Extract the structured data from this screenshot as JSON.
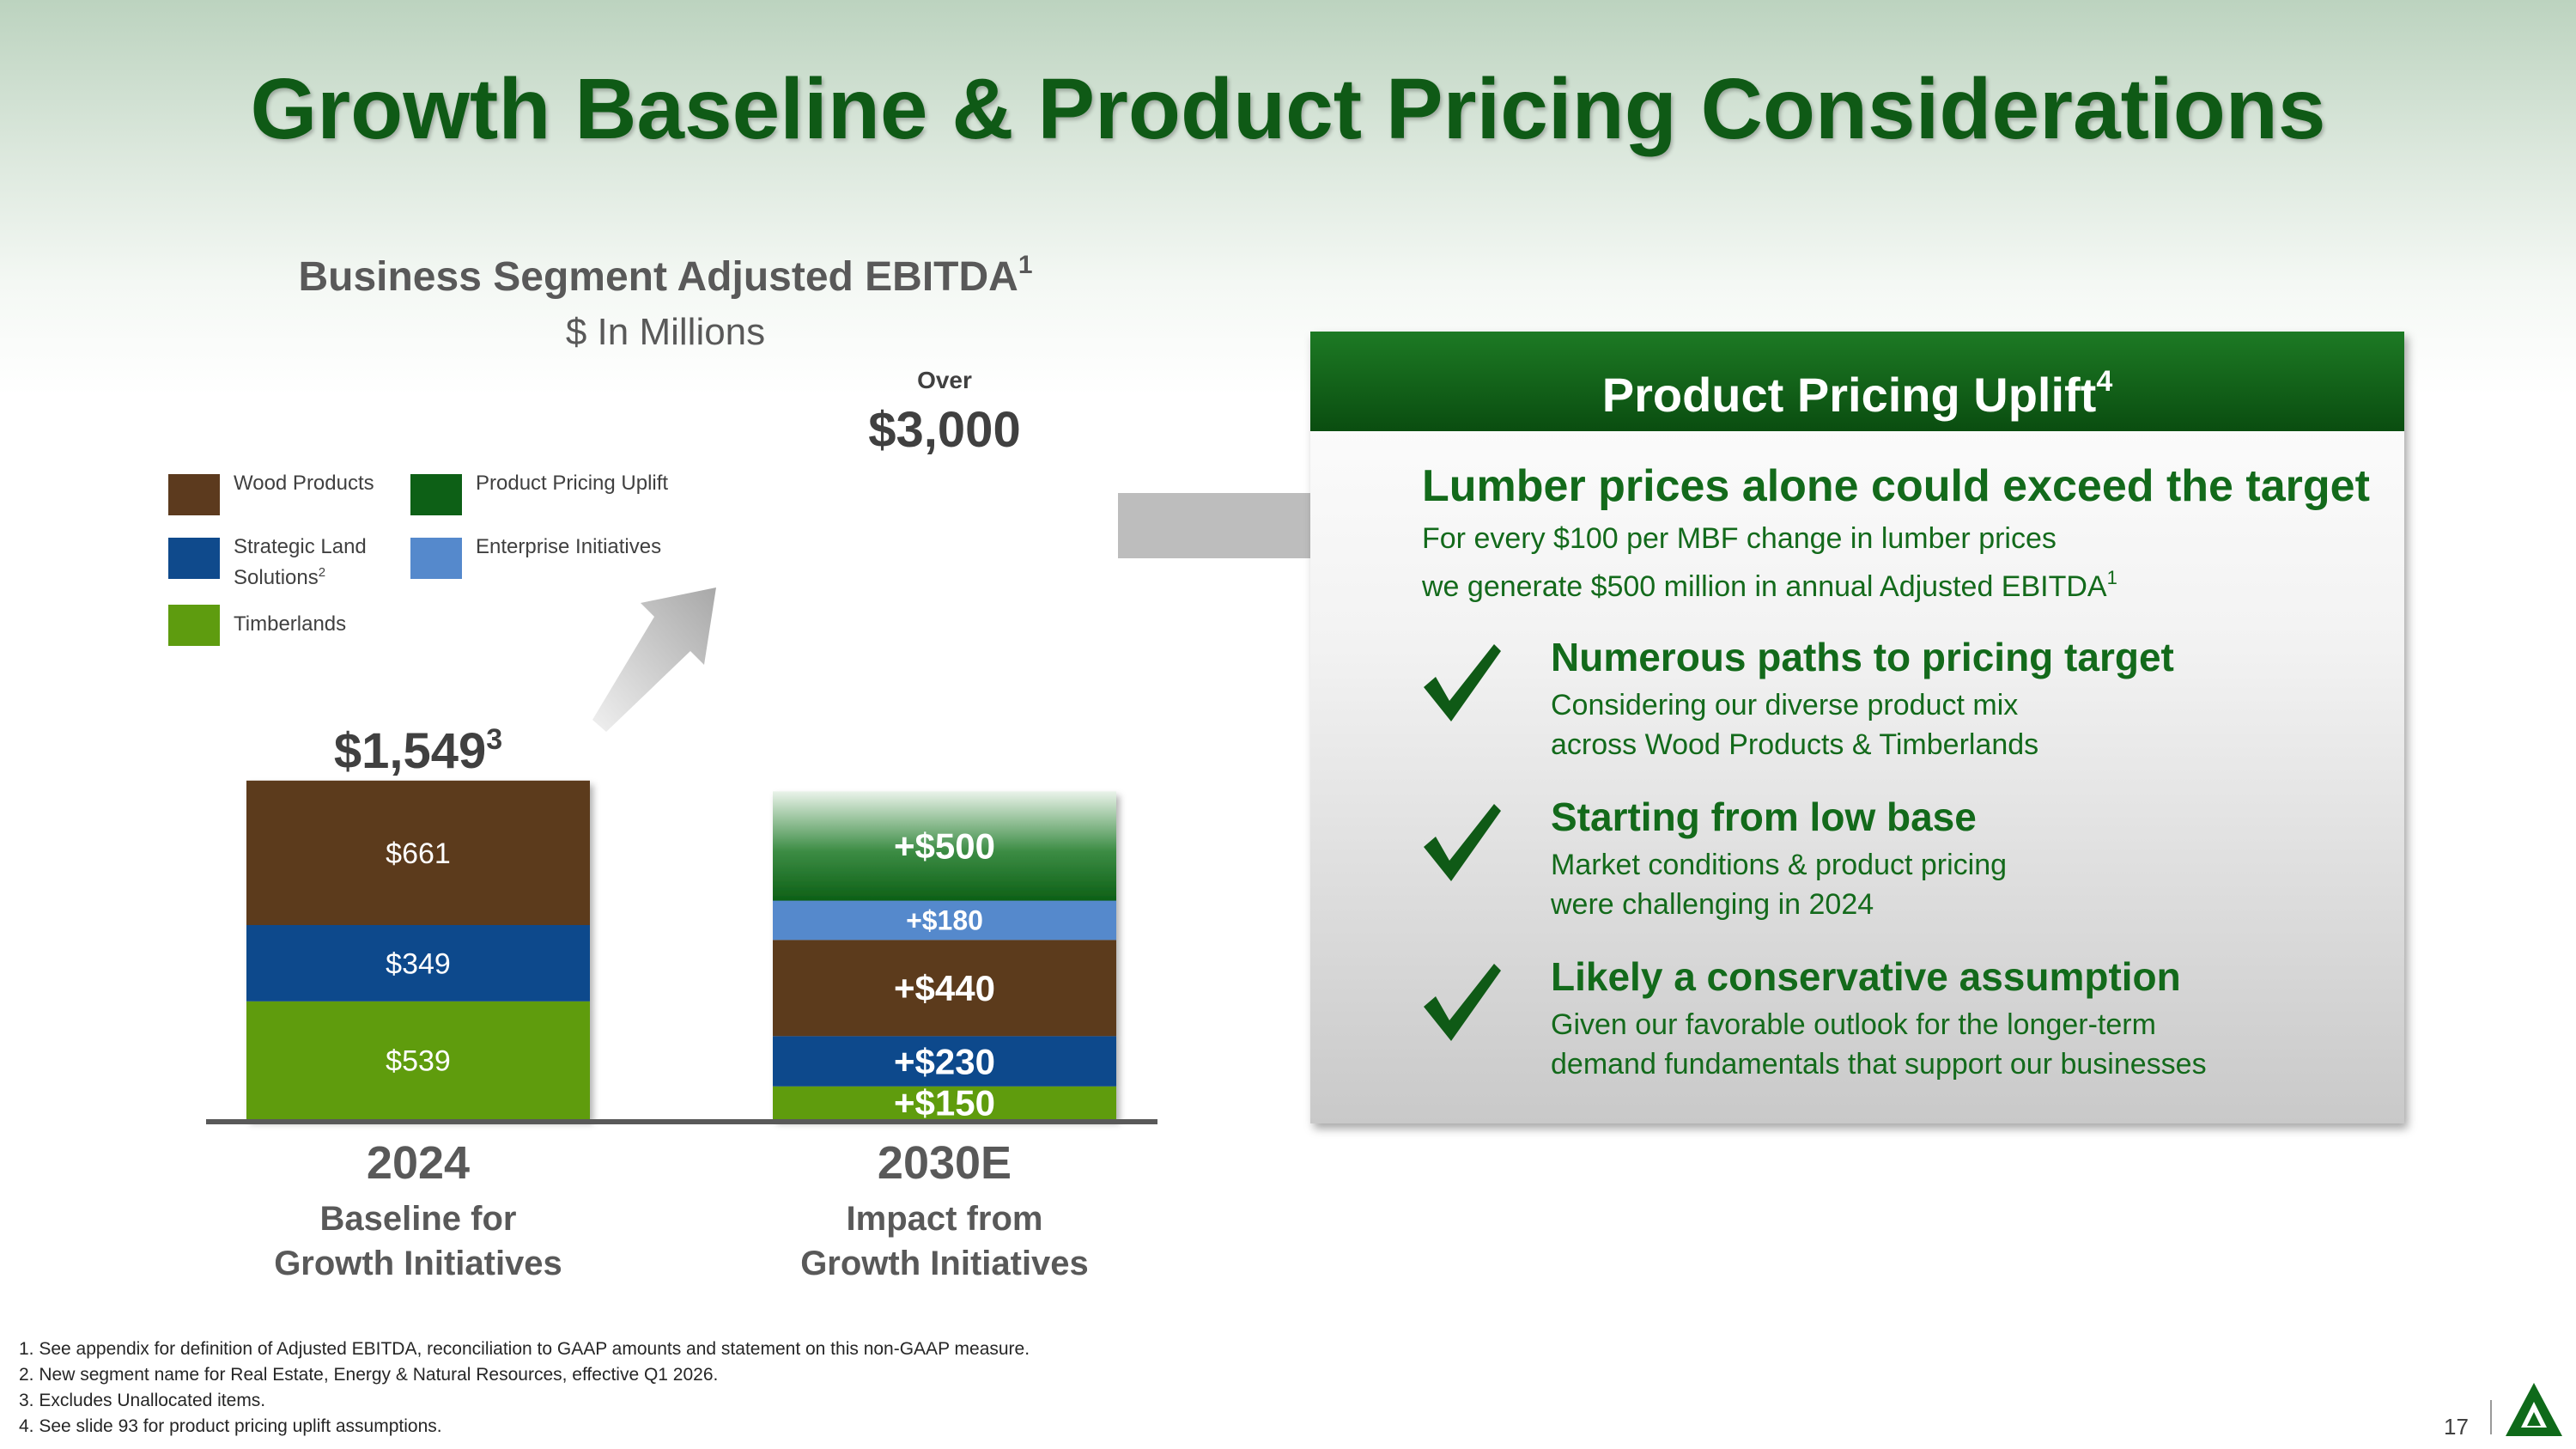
{
  "title": "Growth Baseline & Product Pricing Considerations",
  "chart_header": {
    "title": "Business Segment Adjusted EBITDA",
    "title_sup": "1",
    "subtitle": "$ In Millions"
  },
  "legend": [
    {
      "label": "Wood Products",
      "color": "#5c3a1e"
    },
    {
      "label": "Product Pricing Uplift",
      "color": "#0d6016"
    },
    {
      "label": "Strategic Land Solutions",
      "sup": "2",
      "color": "#0f4a8c"
    },
    {
      "label": "Enterprise Initiatives",
      "color": "#5589cc"
    },
    {
      "label": "Timberlands",
      "color": "#5e9c0f"
    }
  ],
  "chart_data": {
    "type": "bar",
    "subtype": "stacked",
    "unit": "$ In Millions",
    "categories": [
      "2024",
      "2030E"
    ],
    "category_subtitles": [
      [
        "Baseline for",
        "Growth Initiatives"
      ],
      [
        "Impact from",
        "Growth Initiatives"
      ]
    ],
    "totals": [
      {
        "label": "$1,549",
        "sup": "3",
        "prefix": ""
      },
      {
        "label": "$3,000",
        "sup": "",
        "prefix": "Over"
      }
    ],
    "series": [
      {
        "name": "Timberlands",
        "color": "#5e9c0f",
        "values": [
          539,
          150
        ],
        "labels": [
          "$539",
          "+$150"
        ]
      },
      {
        "name": "Strategic Land Solutions",
        "color": "#0f4a8c",
        "values": [
          349,
          230
        ],
        "labels": [
          "$349",
          "+$230"
        ]
      },
      {
        "name": "Wood Products",
        "color": "#5c3a1e",
        "values": [
          661,
          440
        ],
        "labels": [
          "$661",
          "+$440"
        ]
      },
      {
        "name": "Enterprise Initiatives",
        "color": "#5589cc",
        "values": [
          0,
          180
        ],
        "labels": [
          "",
          "+$180"
        ]
      },
      {
        "name": "Product Pricing Uplift",
        "color": "#0d6016",
        "values": [
          0,
          500
        ],
        "labels": [
          "",
          "+$500"
        ]
      }
    ]
  },
  "panel": {
    "header": "Product Pricing Uplift",
    "header_sup": "4",
    "headline": "Lumber prices alone could exceed the target",
    "body_line1": "For every $100 per MBF change in lumber prices",
    "body_line2": "we generate $500 million in annual Adjusted EBITDA",
    "body_sup": "1",
    "points": [
      {
        "title": "Numerous paths to pricing target",
        "line1": "Considering our diverse product mix",
        "line2": "across Wood Products & Timberlands"
      },
      {
        "title": "Starting from low base",
        "line1": "Market conditions & product pricing",
        "line2": "were challenging in 2024"
      },
      {
        "title": "Likely a conservative assumption",
        "line1": "Given our favorable outlook for the longer-term",
        "line2": "demand fundamentals that support our businesses"
      }
    ]
  },
  "footnotes": [
    "1. See appendix for definition of Adjusted EBITDA, reconciliation to GAAP amounts and statement on this non-GAAP measure.",
    "2. New segment name for Real Estate, Energy & Natural Resources, effective Q1 2026.",
    "3. Excludes Unallocated items.",
    "4. See slide 93 for product pricing uplift assumptions."
  ],
  "page_number": "17",
  "colors": {
    "title_green": "#0f5a16",
    "text_green": "#136a1b",
    "arrow_gray": "#b7b7b7"
  }
}
